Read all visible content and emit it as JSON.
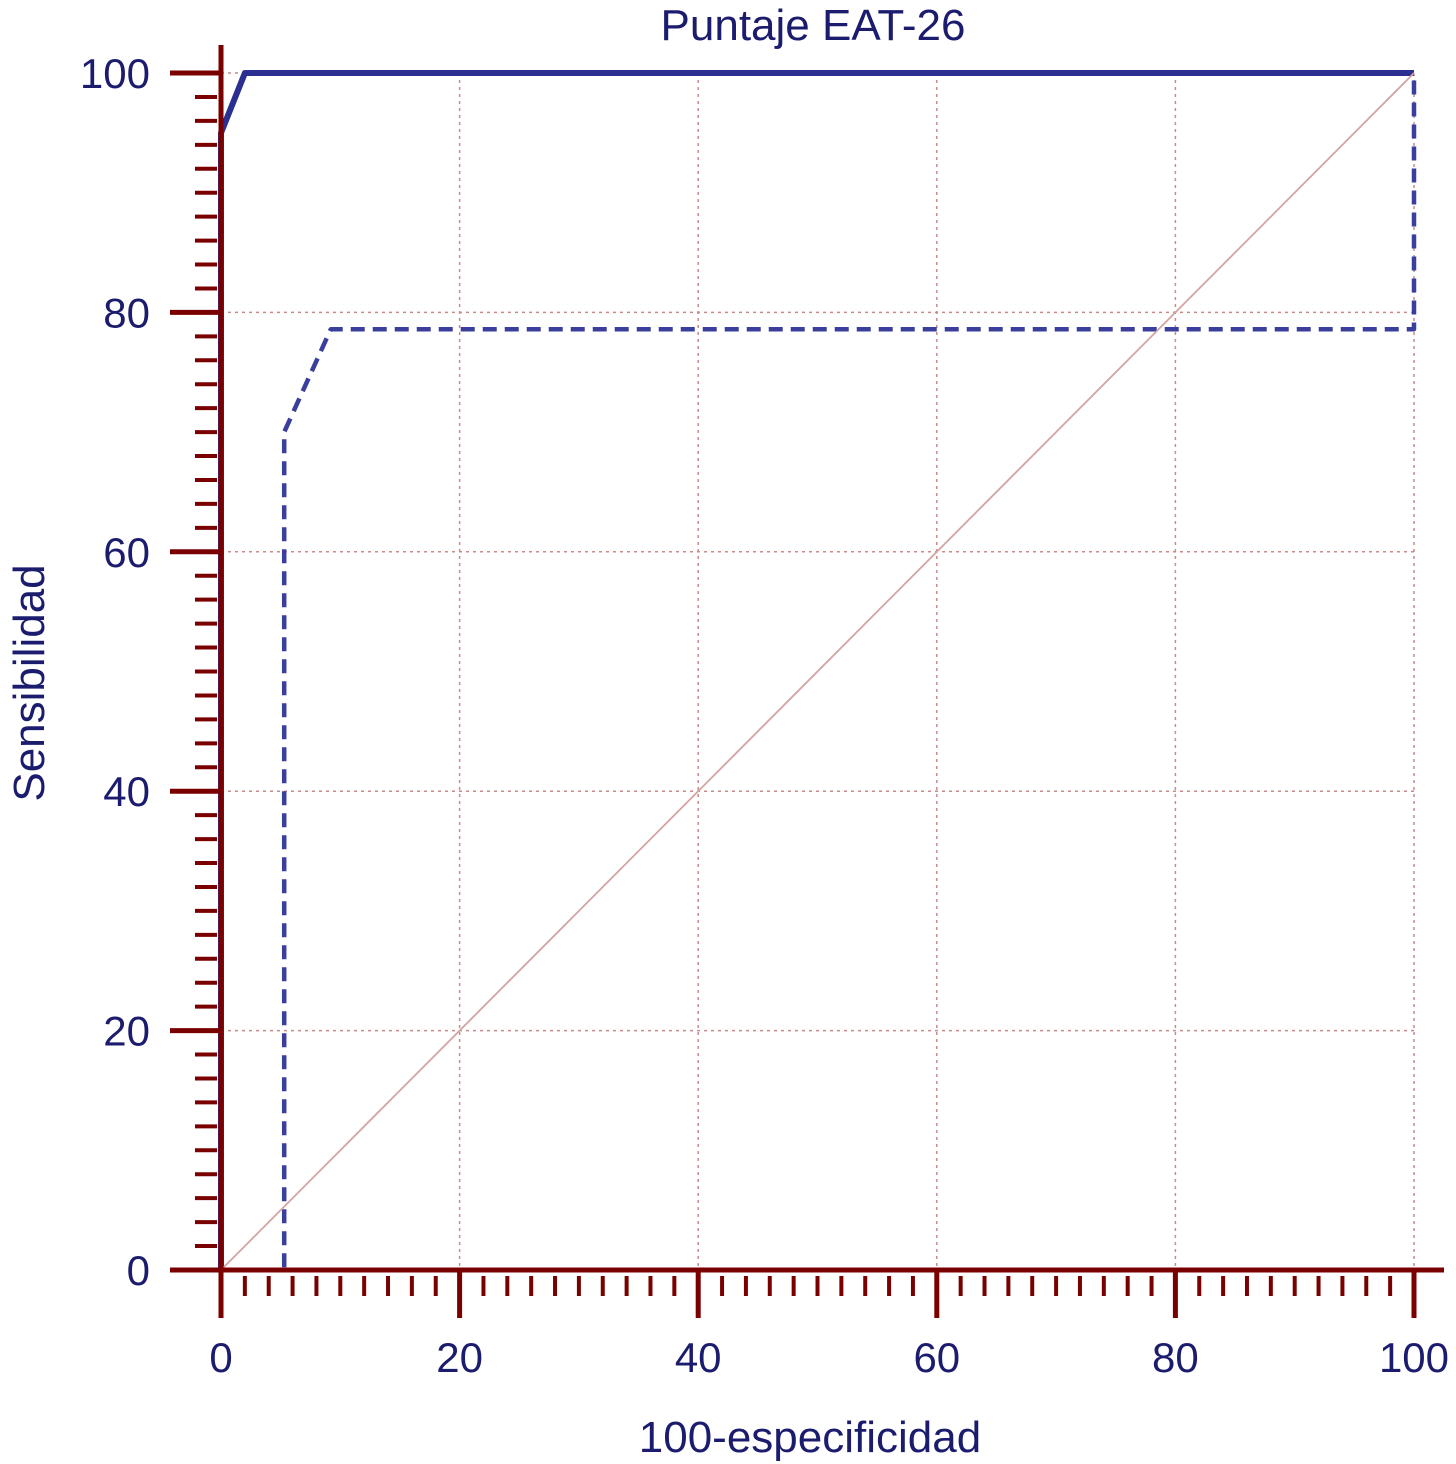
{
  "chart_data": {
    "type": "line",
    "title": "Puntaje EAT-26",
    "xlabel": "100-especificidad",
    "ylabel": "Sensibilidad",
    "xlim": [
      0,
      100
    ],
    "ylim": [
      0,
      100
    ],
    "x_ticks": [
      "0",
      "20",
      "40",
      "60",
      "80",
      "100"
    ],
    "y_ticks": [
      "0",
      "20",
      "40",
      "60",
      "80",
      "100"
    ],
    "grid": true,
    "legend": "none",
    "series": [
      {
        "style": "solid",
        "color": "#2b2f8f",
        "points": [
          [
            0,
            0
          ],
          [
            0,
            95
          ],
          [
            2,
            100
          ],
          [
            100,
            100
          ]
        ]
      },
      {
        "style": "dashed",
        "color": "#3a3f9e",
        "points": [
          [
            0,
            0
          ],
          [
            5.3,
            0
          ],
          [
            5.3,
            70
          ],
          [
            9.2,
            78.6
          ],
          [
            100,
            78.6
          ],
          [
            100,
            100
          ]
        ]
      },
      {
        "style": "reference",
        "color": "#d4a3a3",
        "points": [
          [
            0,
            0
          ],
          [
            100,
            100
          ]
        ]
      }
    ],
    "colors": {
      "axis": "#7a0000",
      "grid": "#c98a8a",
      "text": "#1c1c6e"
    }
  }
}
